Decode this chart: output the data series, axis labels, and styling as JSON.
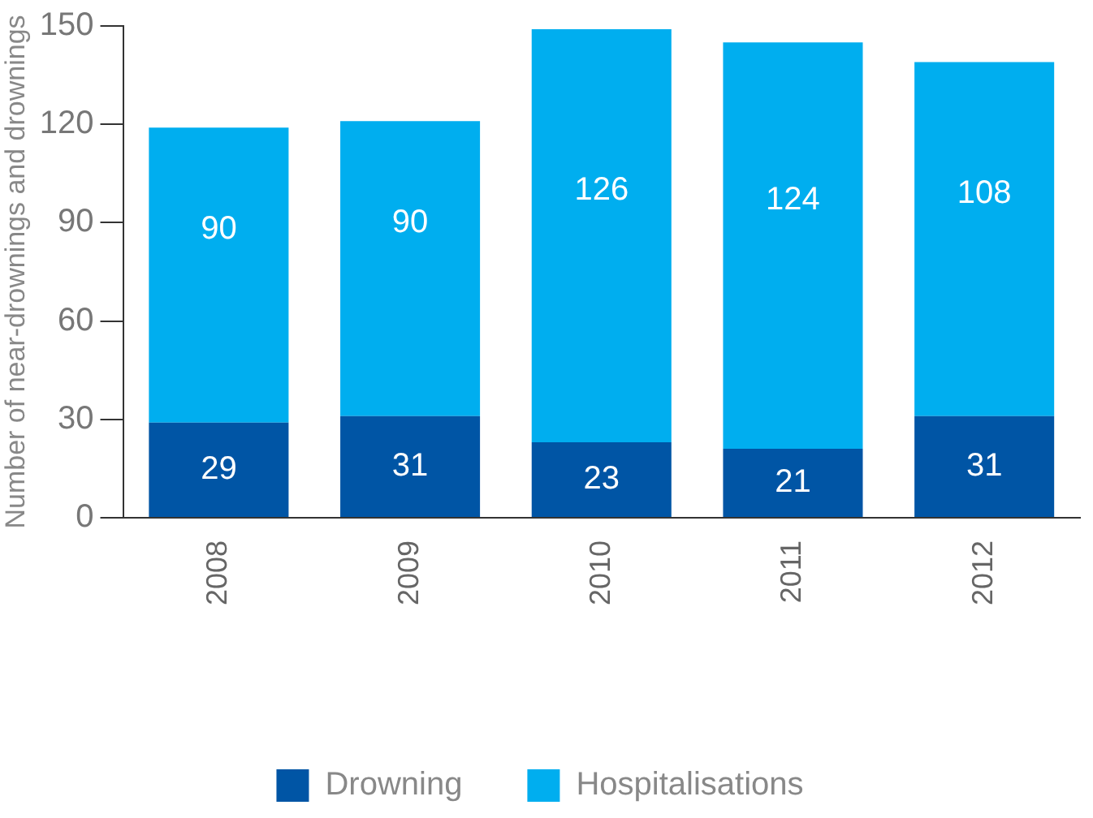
{
  "chart_data": {
    "type": "bar",
    "ylabel": "Number of near-drownings and drownings",
    "categories": [
      "2008",
      "2009",
      "2010",
      "2011",
      "2012"
    ],
    "series": [
      {
        "name": "Drowning",
        "color": "#0055a5",
        "values": [
          29,
          31,
          23,
          21,
          31
        ]
      },
      {
        "name": "Hospitalisations",
        "color": "#00aeef",
        "values": [
          90,
          90,
          126,
          124,
          108
        ]
      }
    ],
    "stacked": true,
    "ylim": [
      0,
      150
    ],
    "yticks": [
      0,
      30,
      60,
      90,
      120,
      150
    ],
    "grid": false,
    "legend": "bottom",
    "data_labels": true
  }
}
